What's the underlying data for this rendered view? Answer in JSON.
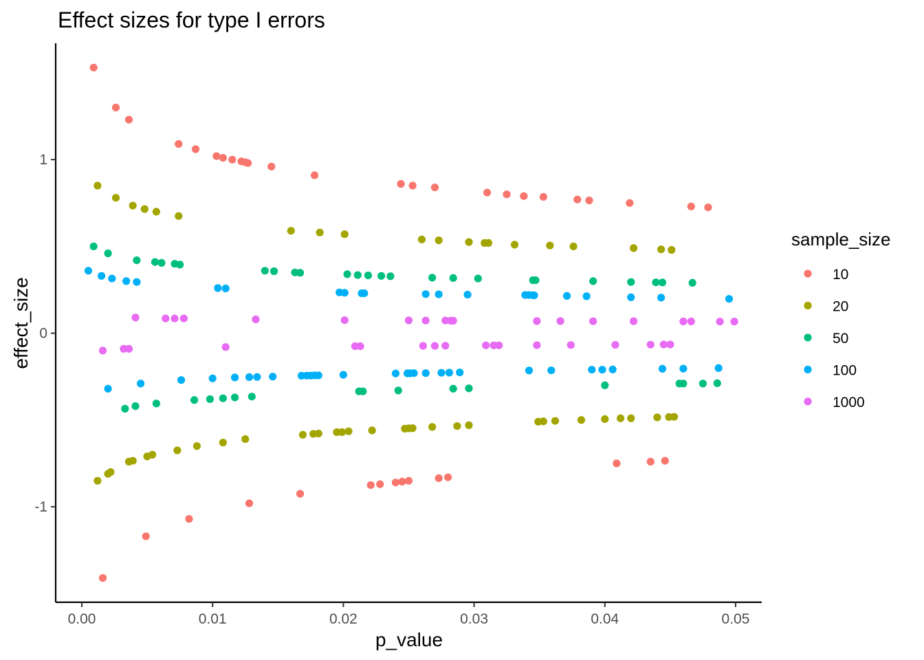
{
  "chart_data": {
    "type": "scatter",
    "title": "Effect sizes for type I errors",
    "xlabel": "p_value",
    "ylabel": "effect_size",
    "xlim": [
      -0.002,
      0.052
    ],
    "ylim": [
      -1.55,
      1.67
    ],
    "x_ticks": [
      0.0,
      0.01,
      0.02,
      0.03,
      0.04,
      0.05
    ],
    "x_tick_labels": [
      "0.00",
      "0.01",
      "0.02",
      "0.03",
      "0.04",
      "0.05"
    ],
    "y_ticks": [
      -1,
      0,
      1
    ],
    "y_tick_labels": [
      "-1",
      "0",
      "1"
    ],
    "grid": false,
    "legend": {
      "title": "sample_size",
      "position": "right"
    },
    "series": [
      {
        "name": "10",
        "color": "#F8766D",
        "points": [
          [
            0.0009,
            1.53
          ],
          [
            0.0026,
            1.3
          ],
          [
            0.0036,
            1.23
          ],
          [
            0.0074,
            1.09
          ],
          [
            0.0087,
            1.06
          ],
          [
            0.0103,
            1.02
          ],
          [
            0.0108,
            1.01
          ],
          [
            0.0115,
            1.0
          ],
          [
            0.0122,
            0.99
          ],
          [
            0.0125,
            0.985
          ],
          [
            0.0127,
            0.98
          ],
          [
            0.0145,
            0.96
          ],
          [
            0.0178,
            0.91
          ],
          [
            0.0244,
            0.86
          ],
          [
            0.0253,
            0.85
          ],
          [
            0.027,
            0.84
          ],
          [
            0.031,
            0.81
          ],
          [
            0.0325,
            0.8
          ],
          [
            0.0338,
            0.79
          ],
          [
            0.0353,
            0.785
          ],
          [
            0.0379,
            0.77
          ],
          [
            0.0388,
            0.765
          ],
          [
            0.0419,
            0.75
          ],
          [
            0.0466,
            0.73
          ],
          [
            0.0479,
            0.725
          ],
          [
            0.0016,
            -1.41
          ],
          [
            0.0049,
            -1.17
          ],
          [
            0.0082,
            -1.07
          ],
          [
            0.0128,
            -0.98
          ],
          [
            0.0167,
            -0.925
          ],
          [
            0.0221,
            -0.875
          ],
          [
            0.0228,
            -0.87
          ],
          [
            0.024,
            -0.86
          ],
          [
            0.0245,
            -0.855
          ],
          [
            0.025,
            -0.85
          ],
          [
            0.0273,
            -0.835
          ],
          [
            0.028,
            -0.83
          ],
          [
            0.0409,
            -0.75
          ],
          [
            0.0435,
            -0.74
          ],
          [
            0.0446,
            -0.735
          ]
        ]
      },
      {
        "name": "20",
        "color": "#A3A500",
        "points": [
          [
            0.0012,
            0.85
          ],
          [
            0.0026,
            0.78
          ],
          [
            0.0039,
            0.735
          ],
          [
            0.0048,
            0.715
          ],
          [
            0.0057,
            0.7
          ],
          [
            0.0074,
            0.675
          ],
          [
            0.016,
            0.59
          ],
          [
            0.0182,
            0.58
          ],
          [
            0.0201,
            0.57
          ],
          [
            0.026,
            0.54
          ],
          [
            0.0273,
            0.535
          ],
          [
            0.0296,
            0.525
          ],
          [
            0.0308,
            0.52
          ],
          [
            0.0311,
            0.52
          ],
          [
            0.0331,
            0.51
          ],
          [
            0.0358,
            0.505
          ],
          [
            0.0376,
            0.5
          ],
          [
            0.0422,
            0.49
          ],
          [
            0.0443,
            0.483
          ],
          [
            0.0451,
            0.48
          ],
          [
            0.0012,
            -0.85
          ],
          [
            0.002,
            -0.81
          ],
          [
            0.0022,
            -0.8
          ],
          [
            0.0036,
            -0.74
          ],
          [
            0.0039,
            -0.735
          ],
          [
            0.005,
            -0.71
          ],
          [
            0.0054,
            -0.7
          ],
          [
            0.0073,
            -0.675
          ],
          [
            0.0088,
            -0.65
          ],
          [
            0.0108,
            -0.63
          ],
          [
            0.0125,
            -0.61
          ],
          [
            0.0169,
            -0.585
          ],
          [
            0.0177,
            -0.58
          ],
          [
            0.0181,
            -0.578
          ],
          [
            0.0195,
            -0.57
          ],
          [
            0.0199,
            -0.57
          ],
          [
            0.0204,
            -0.565
          ],
          [
            0.0222,
            -0.56
          ],
          [
            0.0247,
            -0.55
          ],
          [
            0.025,
            -0.548
          ],
          [
            0.0253,
            -0.547
          ],
          [
            0.0268,
            -0.54
          ],
          [
            0.0287,
            -0.535
          ],
          [
            0.0296,
            -0.53
          ],
          [
            0.0349,
            -0.51
          ],
          [
            0.0353,
            -0.508
          ],
          [
            0.0362,
            -0.505
          ],
          [
            0.0382,
            -0.5
          ],
          [
            0.04,
            -0.495
          ],
          [
            0.0412,
            -0.49
          ],
          [
            0.042,
            -0.49
          ],
          [
            0.044,
            -0.485
          ],
          [
            0.0449,
            -0.483
          ],
          [
            0.0453,
            -0.482
          ]
        ]
      },
      {
        "name": "50",
        "color": "#00BF7D",
        "points": [
          [
            0.0009,
            0.5
          ],
          [
            0.002,
            0.46
          ],
          [
            0.0042,
            0.42
          ],
          [
            0.0056,
            0.41
          ],
          [
            0.0061,
            0.405
          ],
          [
            0.0071,
            0.4
          ],
          [
            0.0075,
            0.395
          ],
          [
            0.014,
            0.36
          ],
          [
            0.0147,
            0.357
          ],
          [
            0.0163,
            0.35
          ],
          [
            0.0167,
            0.348
          ],
          [
            0.0203,
            0.34
          ],
          [
            0.0211,
            0.335
          ],
          [
            0.0219,
            0.333
          ],
          [
            0.0229,
            0.33
          ],
          [
            0.0236,
            0.328
          ],
          [
            0.0268,
            0.32
          ],
          [
            0.0284,
            0.318
          ],
          [
            0.0303,
            0.315
          ],
          [
            0.0345,
            0.305
          ],
          [
            0.0347,
            0.305
          ],
          [
            0.0391,
            0.3
          ],
          [
            0.042,
            0.295
          ],
          [
            0.0439,
            0.293
          ],
          [
            0.0444,
            0.292
          ],
          [
            0.0467,
            0.29
          ],
          [
            0.0033,
            -0.435
          ],
          [
            0.0041,
            -0.42
          ],
          [
            0.0057,
            -0.405
          ],
          [
            0.0086,
            -0.385
          ],
          [
            0.0098,
            -0.38
          ],
          [
            0.0108,
            -0.375
          ],
          [
            0.0117,
            -0.37
          ],
          [
            0.013,
            -0.365
          ],
          [
            0.0212,
            -0.335
          ],
          [
            0.0215,
            -0.335
          ],
          [
            0.0242,
            -0.33
          ],
          [
            0.0284,
            -0.32
          ],
          [
            0.0296,
            -0.318
          ],
          [
            0.04,
            -0.3
          ],
          [
            0.0457,
            -0.29
          ],
          [
            0.046,
            -0.29
          ],
          [
            0.0475,
            -0.29
          ],
          [
            0.0486,
            -0.288
          ]
        ]
      },
      {
        "name": "100",
        "color": "#00B0F6",
        "points": [
          [
            0.0005,
            0.36
          ],
          [
            0.0015,
            0.33
          ],
          [
            0.0023,
            0.315
          ],
          [
            0.0034,
            0.3
          ],
          [
            0.0042,
            0.295
          ],
          [
            0.0104,
            0.26
          ],
          [
            0.011,
            0.258
          ],
          [
            0.0197,
            0.235
          ],
          [
            0.0201,
            0.233
          ],
          [
            0.0214,
            0.23
          ],
          [
            0.0216,
            0.23
          ],
          [
            0.0263,
            0.225
          ],
          [
            0.0273,
            0.224
          ],
          [
            0.0295,
            0.222
          ],
          [
            0.0339,
            0.22
          ],
          [
            0.0342,
            0.22
          ],
          [
            0.0345,
            0.219
          ],
          [
            0.0346,
            0.218
          ],
          [
            0.0371,
            0.215
          ],
          [
            0.0386,
            0.213
          ],
          [
            0.042,
            0.207
          ],
          [
            0.0443,
            0.205
          ],
          [
            0.0495,
            0.198
          ],
          [
            0.002,
            -0.32
          ],
          [
            0.0045,
            -0.29
          ],
          [
            0.0076,
            -0.27
          ],
          [
            0.01,
            -0.26
          ],
          [
            0.0117,
            -0.255
          ],
          [
            0.0128,
            -0.253
          ],
          [
            0.0134,
            -0.252
          ],
          [
            0.0146,
            -0.25
          ],
          [
            0.0168,
            -0.245
          ],
          [
            0.0172,
            -0.244
          ],
          [
            0.0175,
            -0.244
          ],
          [
            0.0178,
            -0.243
          ],
          [
            0.0181,
            -0.243
          ],
          [
            0.02,
            -0.24
          ],
          [
            0.024,
            -0.232
          ],
          [
            0.0249,
            -0.231
          ],
          [
            0.0251,
            -0.231
          ],
          [
            0.0254,
            -0.23
          ],
          [
            0.0263,
            -0.23
          ],
          [
            0.0275,
            -0.228
          ],
          [
            0.0281,
            -0.227
          ],
          [
            0.0289,
            -0.226
          ],
          [
            0.0342,
            -0.215
          ],
          [
            0.0359,
            -0.214
          ],
          [
            0.039,
            -0.21
          ],
          [
            0.0398,
            -0.21
          ],
          [
            0.0406,
            -0.209
          ],
          [
            0.0444,
            -0.205
          ],
          [
            0.046,
            -0.204
          ],
          [
            0.0487,
            -0.201
          ]
        ]
      },
      {
        "name": "1000",
        "color": "#E76BF3",
        "points": [
          [
            0.0041,
            0.09
          ],
          [
            0.0064,
            0.085
          ],
          [
            0.0071,
            0.085
          ],
          [
            0.0078,
            0.085
          ],
          [
            0.0133,
            0.08
          ],
          [
            0.0201,
            0.075
          ],
          [
            0.025,
            0.074
          ],
          [
            0.0263,
            0.073
          ],
          [
            0.0278,
            0.073
          ],
          [
            0.0282,
            0.072
          ],
          [
            0.0284,
            0.072
          ],
          [
            0.0348,
            0.07
          ],
          [
            0.0366,
            0.07
          ],
          [
            0.0391,
            0.069
          ],
          [
            0.0422,
            0.069
          ],
          [
            0.046,
            0.068
          ],
          [
            0.0466,
            0.068
          ],
          [
            0.0488,
            0.067
          ],
          [
            0.0499,
            0.067
          ],
          [
            0.0016,
            -0.1
          ],
          [
            0.0032,
            -0.09
          ],
          [
            0.0036,
            -0.09
          ],
          [
            0.011,
            -0.08
          ],
          [
            0.0209,
            -0.075
          ],
          [
            0.0213,
            -0.075
          ],
          [
            0.0261,
            -0.073
          ],
          [
            0.027,
            -0.073
          ],
          [
            0.0278,
            -0.072
          ],
          [
            0.0309,
            -0.07
          ],
          [
            0.0315,
            -0.07
          ],
          [
            0.0319,
            -0.07
          ],
          [
            0.0348,
            -0.069
          ],
          [
            0.0374,
            -0.068
          ],
          [
            0.0408,
            -0.067
          ],
          [
            0.0435,
            -0.066
          ],
          [
            0.0445,
            -0.065
          ],
          [
            0.045,
            -0.065
          ]
        ]
      }
    ]
  }
}
